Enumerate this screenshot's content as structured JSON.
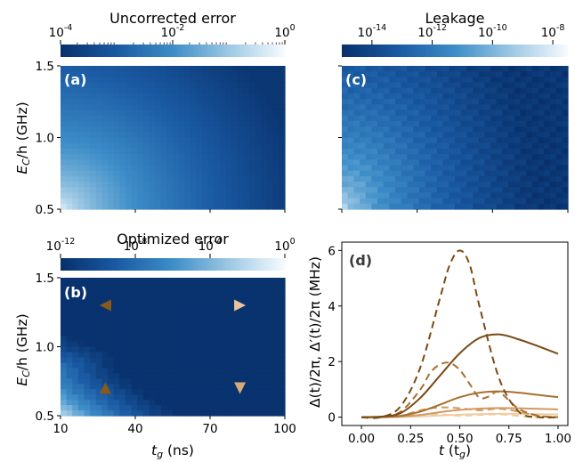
{
  "colors": {
    "cmap_dark": "#08306b",
    "cmap_mid": "#2f7ebc",
    "cmap_light": "#f7fbff",
    "marker_dark": "#8a5a1c",
    "marker_light": "#e8c49a",
    "curve_colors": [
      "#7a4a14",
      "#a8702e",
      "#cf9a63",
      "#efcca4"
    ]
  },
  "chart_data": [
    {
      "id": "a",
      "type": "heatmap",
      "panel_label": "(a)",
      "colorbar": {
        "title": "Uncorrected error",
        "scale": "log",
        "range": [
          0.0001,
          1
        ],
        "tick_labels": [
          "10",
          "10",
          "10"
        ],
        "tick_exps": [
          "-4",
          "-2",
          "0"
        ]
      },
      "xlim": [
        10,
        100
      ],
      "ylim": [
        0.5,
        1.5
      ],
      "ylabel_main": "E",
      "ylabel_sub": "C",
      "ylabel_rest": "/h (GHz)",
      "y_tick_labels": [
        "0.5",
        "1.0",
        "1.5"
      ],
      "x_tick_labels": [],
      "description_values": "error decreases with t_g and E_C; ~1 near (10 ns, 0.5 GHz), ~1e-3 to 1e-4 at long t_g"
    },
    {
      "id": "c",
      "type": "heatmap",
      "panel_label": "(c)",
      "colorbar": {
        "title": "Leakage",
        "scale": "log",
        "range": [
          1e-15,
          1e-08
        ],
        "tick_labels": [
          "10",
          "10",
          "10",
          "10"
        ],
        "tick_exps": [
          "-14",
          "-12",
          "-10",
          "-8"
        ]
      },
      "xlim": [
        10,
        100
      ],
      "ylim": [
        0.5,
        1.5
      ],
      "description_values": "leakage ~1e-8 near small t_g & low E_C, decreasing to ~1e-15 at large t_g & high E_C"
    },
    {
      "id": "b",
      "type": "heatmap",
      "panel_label": "(b)",
      "colorbar": {
        "title": "Optimized error",
        "scale": "log",
        "range": [
          1e-12,
          1
        ],
        "tick_labels": [
          "10",
          "10",
          "10",
          "10"
        ],
        "tick_exps": [
          "-12",
          "-8",
          "-4",
          "0"
        ]
      },
      "xlim": [
        10,
        100
      ],
      "ylim": [
        0.5,
        1.5
      ],
      "x_tick_labels": [
        "10",
        "40",
        "70",
        "100"
      ],
      "xlabel_main": "t",
      "xlabel_sub": "g",
      "xlabel_rest": " (ns)",
      "ylabel_main": "E",
      "ylabel_sub": "C",
      "ylabel_rest": "/h (GHz)",
      "y_tick_labels": [
        "0.5",
        "1.0",
        "1.5"
      ],
      "markers": [
        {
          "shape": "triangle-left",
          "t_g": 28,
          "E_C": 1.3,
          "color": "#8a5a1c"
        },
        {
          "shape": "triangle-right",
          "t_g": 82,
          "E_C": 1.3,
          "color": "#e8c49a"
        },
        {
          "shape": "triangle-up",
          "t_g": 28,
          "E_C": 0.7,
          "color": "#8a5a1c"
        },
        {
          "shape": "triangle-down",
          "t_g": 82,
          "E_C": 0.7,
          "color": "#d8aa78"
        }
      ]
    },
    {
      "id": "d",
      "type": "line",
      "panel_label": "(d)",
      "xlim": [
        -0.1,
        1.05
      ],
      "ylim": [
        -0.3,
        6.3
      ],
      "x_ticks": [
        0.0,
        0.25,
        0.5,
        0.75,
        1.0
      ],
      "x_tick_labels": [
        "0.00",
        "0.25",
        "0.50",
        "0.75",
        "1.00"
      ],
      "y_ticks": [
        0,
        2,
        4,
        6
      ],
      "y_tick_labels": [
        "0",
        "2",
        "4",
        "6"
      ],
      "xlabel_main": "t",
      "xlabel_paren": "(t",
      "xlabel_sub": "g",
      "xlabel_close": ")",
      "ylabel": "Δ(t)/2π, Δ′(t)/2π (MHz)",
      "series": [
        {
          "style": "solid",
          "color": "#7a4a14",
          "x": [
            0,
            0.1,
            0.2,
            0.3,
            0.4,
            0.5,
            0.6,
            0.7,
            0.8,
            0.9,
            1.0
          ],
          "y": [
            0,
            0.02,
            0.15,
            0.7,
            1.5,
            2.3,
            2.85,
            2.98,
            2.8,
            2.55,
            2.28
          ]
        },
        {
          "style": "dashed",
          "color": "#7a4a14",
          "x": [
            0,
            0.1,
            0.2,
            0.3,
            0.4,
            0.45,
            0.5,
            0.55,
            0.6,
            0.7,
            0.8,
            0.9,
            1.0
          ],
          "y": [
            0,
            0.0,
            0.4,
            1.8,
            4.3,
            5.5,
            6.0,
            5.5,
            4.0,
            1.4,
            0.2,
            0.0,
            0.0
          ]
        },
        {
          "style": "solid",
          "color": "#a8702e",
          "x": [
            0,
            0.1,
            0.2,
            0.3,
            0.4,
            0.5,
            0.6,
            0.7,
            0.8,
            0.9,
            1.0
          ],
          "y": [
            0,
            0.0,
            0.05,
            0.2,
            0.45,
            0.72,
            0.88,
            0.93,
            0.88,
            0.8,
            0.72
          ]
        },
        {
          "style": "dashed",
          "color": "#a8702e",
          "x": [
            0,
            0.1,
            0.2,
            0.3,
            0.35,
            0.4,
            0.45,
            0.5,
            0.55,
            0.6,
            0.65,
            0.7,
            0.8,
            0.9,
            1.0
          ],
          "y": [
            0,
            0.0,
            0.2,
            1.0,
            1.6,
            1.9,
            1.95,
            1.7,
            1.2,
            0.7,
            0.75,
            0.9,
            0.3,
            0.05,
            0.0
          ]
        },
        {
          "style": "solid",
          "color": "#cf9a63",
          "x": [
            0,
            0.1,
            0.2,
            0.3,
            0.4,
            0.5,
            0.6,
            0.7,
            0.8,
            0.9,
            1.0
          ],
          "y": [
            0,
            0.0,
            0.02,
            0.08,
            0.18,
            0.26,
            0.31,
            0.33,
            0.32,
            0.3,
            0.28
          ]
        },
        {
          "style": "dashed",
          "color": "#cf9a63",
          "x": [
            0,
            0.1,
            0.2,
            0.3,
            0.4,
            0.5,
            0.6,
            0.7,
            0.8,
            0.9,
            1.0
          ],
          "y": [
            0,
            0.0,
            0.05,
            0.25,
            0.35,
            0.32,
            0.25,
            0.3,
            0.2,
            0.05,
            0.0
          ]
        },
        {
          "style": "solid",
          "color": "#efcca4",
          "x": [
            0,
            0.1,
            0.2,
            0.3,
            0.4,
            0.5,
            0.6,
            0.7,
            0.8,
            0.9,
            1.0
          ],
          "y": [
            0,
            0.0,
            0.01,
            0.03,
            0.06,
            0.09,
            0.11,
            0.12,
            0.12,
            0.11,
            0.1
          ]
        },
        {
          "style": "dashed",
          "color": "#efcca4",
          "x": [
            0,
            0.1,
            0.2,
            0.3,
            0.4,
            0.5,
            0.6,
            0.7,
            0.8,
            0.9,
            1.0
          ],
          "y": [
            0,
            0.0,
            0.02,
            0.08,
            0.1,
            0.05,
            0.08,
            0.1,
            0.05,
            0.0,
            0.0
          ]
        }
      ]
    }
  ]
}
